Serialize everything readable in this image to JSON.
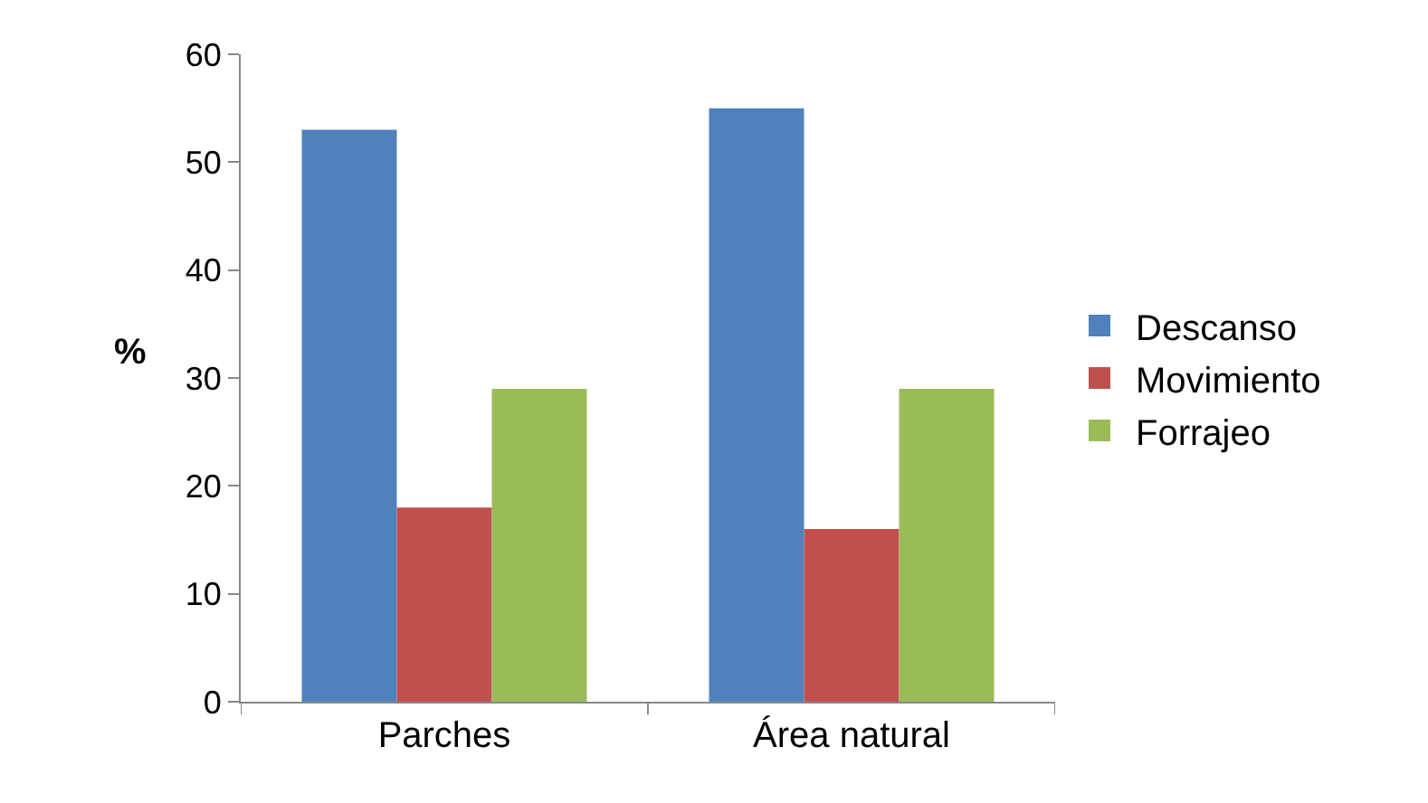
{
  "chart_data": {
    "type": "bar",
    "ylabel": "%",
    "categories": [
      "Parches",
      "Área natural"
    ],
    "series": [
      {
        "name": "Descanso",
        "color": "#4f81bd",
        "values": [
          53,
          55
        ]
      },
      {
        "name": "Movimiento",
        "color": "#c0504d",
        "values": [
          18,
          16
        ]
      },
      {
        "name": "Forrajeo",
        "color": "#9bbb59",
        "values": [
          29,
          29
        ]
      }
    ],
    "ylim": [
      0,
      60
    ],
    "yticks": [
      0,
      10,
      20,
      30,
      40,
      50,
      60
    ],
    "grid": false,
    "legend": "right"
  }
}
